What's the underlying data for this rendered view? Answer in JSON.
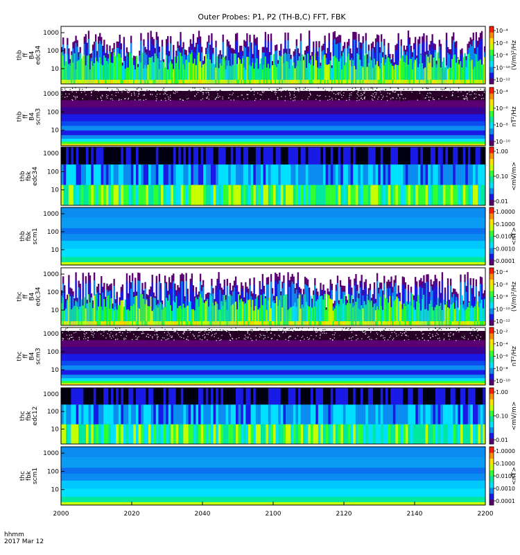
{
  "title": "Outer Probes: P1, P2 (TH-B,C) FFT, FBK",
  "x_axis": {
    "ticks": [
      "2000",
      "2020",
      "2040",
      "2100",
      "2120",
      "2140",
      "2200"
    ],
    "footer_line1": "hhmm",
    "footer_line2": "2017 Mar 12"
  },
  "colors": {
    "scale": [
      "#5a0073",
      "#1a1ae6",
      "#0a8cf0",
      "#00e0ff",
      "#00e8a0",
      "#30ff30",
      "#c8ff00",
      "#ffe000",
      "#ff8c00",
      "#ff1a00"
    ],
    "background": "#ffffff"
  },
  "chart_data": [
    {
      "type": "heatmap",
      "ylabel_lines": [
        "thb",
        "ff",
        "B4",
        "edc34"
      ],
      "y_ticks": [
        "1000",
        "100",
        "10"
      ],
      "yscale": "log",
      "colorbar_ticks": [
        "10⁻⁴",
        "10⁻⁶",
        "10⁻⁸",
        "10⁻¹⁰",
        "10⁻¹²"
      ],
      "colorbar_unit": "(V/m)²/Hz",
      "texture": "bursty spectrogram, high-frequency empty regions"
    },
    {
      "type": "heatmap",
      "ylabel_lines": [
        "thb",
        "ff",
        "B4",
        "scm3"
      ],
      "y_ticks": [
        "1000",
        "100",
        "10"
      ],
      "yscale": "log",
      "colorbar_ticks": [
        "10⁻⁴",
        "10⁻⁶",
        "10⁻⁸",
        "10⁻¹⁰"
      ],
      "colorbar_unit": "nT²/Hz",
      "texture": "horizontal banded spectrum, noisy top"
    },
    {
      "type": "heatmap",
      "ylabel_lines": [
        "thb",
        "fbk",
        "edc34"
      ],
      "y_ticks": [
        "1000",
        "100",
        "10"
      ],
      "yscale": "log",
      "colorbar_ticks": [
        "1.00",
        "0.10",
        "0.01"
      ],
      "colorbar_unit": "<mV/m>",
      "texture": "vertical striped columns"
    },
    {
      "type": "heatmap",
      "ylabel_lines": [
        "thb",
        "fbk",
        "scm1"
      ],
      "y_ticks": [
        "1000",
        "100",
        "10"
      ],
      "yscale": "log",
      "colorbar_ticks": [
        "1.0000",
        "0.1000",
        "0.0100",
        "0.0010",
        "0.0001"
      ],
      "colorbar_unit": "<nT>",
      "texture": "smooth horizontal bands"
    },
    {
      "type": "heatmap",
      "ylabel_lines": [
        "thc",
        "ff",
        "B4",
        "edc34"
      ],
      "y_ticks": [
        "1000",
        "100",
        "10"
      ],
      "yscale": "log",
      "colorbar_ticks": [
        "10⁻⁴",
        "10⁻⁶",
        "10⁻⁸",
        "10⁻¹⁰",
        "10⁻¹²"
      ],
      "colorbar_unit": "(V/m)²/Hz",
      "texture": "bursty spectrogram, high-frequency empty regions"
    },
    {
      "type": "heatmap",
      "ylabel_lines": [
        "thc",
        "ff",
        "B4",
        "scm3"
      ],
      "y_ticks": [
        "1000",
        "100",
        "10"
      ],
      "yscale": "log",
      "colorbar_ticks": [
        "10⁻²",
        "10⁻⁴",
        "10⁻⁶",
        "10⁻⁸",
        "10⁻¹⁰"
      ],
      "colorbar_unit": "nT²/Hz",
      "texture": "horizontal banded spectrum, noisy top"
    },
    {
      "type": "heatmap",
      "ylabel_lines": [
        "thc",
        "fbk",
        "edc12"
      ],
      "y_ticks": [
        "1000",
        "100",
        "10"
      ],
      "yscale": "log",
      "colorbar_ticks": [
        "1.00",
        "0.10",
        "0.01"
      ],
      "colorbar_unit": "<mV/m>",
      "texture": "vertical striped columns"
    },
    {
      "type": "heatmap",
      "ylabel_lines": [
        "thc",
        "fbk",
        "scm1"
      ],
      "y_ticks": [
        "1000",
        "100",
        "10"
      ],
      "yscale": "log",
      "colorbar_ticks": [
        "1.0000",
        "0.1000",
        "0.0100",
        "0.0010",
        "0.0001"
      ],
      "colorbar_unit": "<nT>",
      "texture": "smooth horizontal bands"
    }
  ]
}
